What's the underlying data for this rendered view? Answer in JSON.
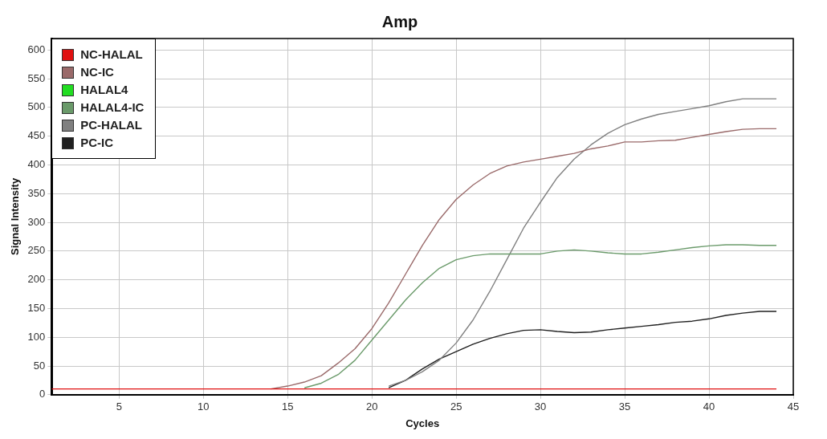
{
  "chart_data": {
    "type": "line",
    "title": "Amp",
    "xlabel": "Cycles",
    "ylabel": "Signal Intensity",
    "x": [
      1,
      2,
      3,
      4,
      5,
      6,
      7,
      8,
      9,
      10,
      11,
      12,
      13,
      14,
      15,
      16,
      17,
      18,
      19,
      20,
      21,
      22,
      23,
      24,
      25,
      26,
      27,
      28,
      29,
      30,
      31,
      32,
      33,
      34,
      35,
      36,
      37,
      38,
      39,
      40,
      41,
      42,
      43,
      44
    ],
    "xlim": [
      1,
      45
    ],
    "xticks": [
      5,
      10,
      15,
      20,
      25,
      30,
      35,
      40,
      45
    ],
    "ylim": [
      0,
      620
    ],
    "yticks": [
      0,
      50,
      100,
      150,
      200,
      250,
      300,
      350,
      400,
      450,
      500,
      550,
      600
    ],
    "grid": true,
    "legend": "top left",
    "marker": "none",
    "line_style": "solid",
    "series": [
      {
        "name": "NC-HALAL",
        "color": "#e01010",
        "values": [
          10,
          10,
          10,
          10,
          10,
          10,
          10,
          10,
          10,
          10,
          10,
          10,
          10,
          10,
          10,
          10,
          10,
          10,
          10,
          10,
          10,
          10,
          10,
          10,
          10,
          10,
          10,
          10,
          10,
          10,
          10,
          10,
          10,
          10,
          10,
          10,
          10,
          10,
          10,
          10,
          10,
          10,
          10,
          10
        ]
      },
      {
        "name": "NC-IC",
        "color": "#9a6a6a",
        "values": [
          null,
          null,
          null,
          null,
          null,
          null,
          null,
          null,
          null,
          null,
          null,
          null,
          null,
          10,
          15,
          22,
          33,
          55,
          80,
          115,
          160,
          210,
          260,
          305,
          340,
          365,
          385,
          398,
          405,
          410,
          415,
          420,
          428,
          433,
          440,
          440,
          442,
          443,
          448,
          453,
          458,
          462,
          463,
          463
        ]
      },
      {
        "name": "HALAL4",
        "color": "#22dd22",
        "values": [
          null,
          null,
          null,
          null,
          null,
          null,
          null,
          null,
          null,
          null,
          null,
          null,
          null,
          null,
          null,
          null,
          null,
          null,
          null,
          null,
          null,
          null,
          null,
          null,
          null,
          null,
          null,
          null,
          null,
          null,
          null,
          null,
          null,
          null,
          null,
          null,
          null,
          null,
          null,
          null,
          null,
          null,
          null,
          null
        ]
      },
      {
        "name": "HALAL4-IC",
        "color": "#6a9a6a",
        "values": [
          null,
          null,
          null,
          null,
          null,
          null,
          null,
          null,
          null,
          null,
          null,
          null,
          null,
          null,
          null,
          12,
          20,
          35,
          60,
          95,
          130,
          165,
          195,
          220,
          235,
          242,
          245,
          245,
          245,
          245,
          250,
          252,
          250,
          247,
          245,
          245,
          248,
          252,
          256,
          259,
          261,
          261,
          260,
          260
        ]
      },
      {
        "name": "PC-HALAL",
        "color": "#808080",
        "values": [
          null,
          null,
          null,
          null,
          null,
          null,
          null,
          null,
          null,
          null,
          null,
          null,
          null,
          null,
          null,
          null,
          null,
          null,
          null,
          null,
          15,
          25,
          40,
          60,
          90,
          130,
          180,
          235,
          290,
          335,
          378,
          410,
          435,
          455,
          470,
          480,
          488,
          493,
          498,
          503,
          510,
          515,
          515,
          515
        ]
      },
      {
        "name": "PC-IC",
        "color": "#202020",
        "values": [
          null,
          null,
          null,
          null,
          null,
          null,
          null,
          null,
          null,
          null,
          null,
          null,
          null,
          null,
          null,
          null,
          null,
          null,
          null,
          null,
          12,
          25,
          45,
          62,
          75,
          88,
          98,
          106,
          112,
          113,
          110,
          108,
          109,
          113,
          116,
          119,
          122,
          126,
          128,
          132,
          138,
          142,
          145,
          145
        ]
      }
    ]
  }
}
